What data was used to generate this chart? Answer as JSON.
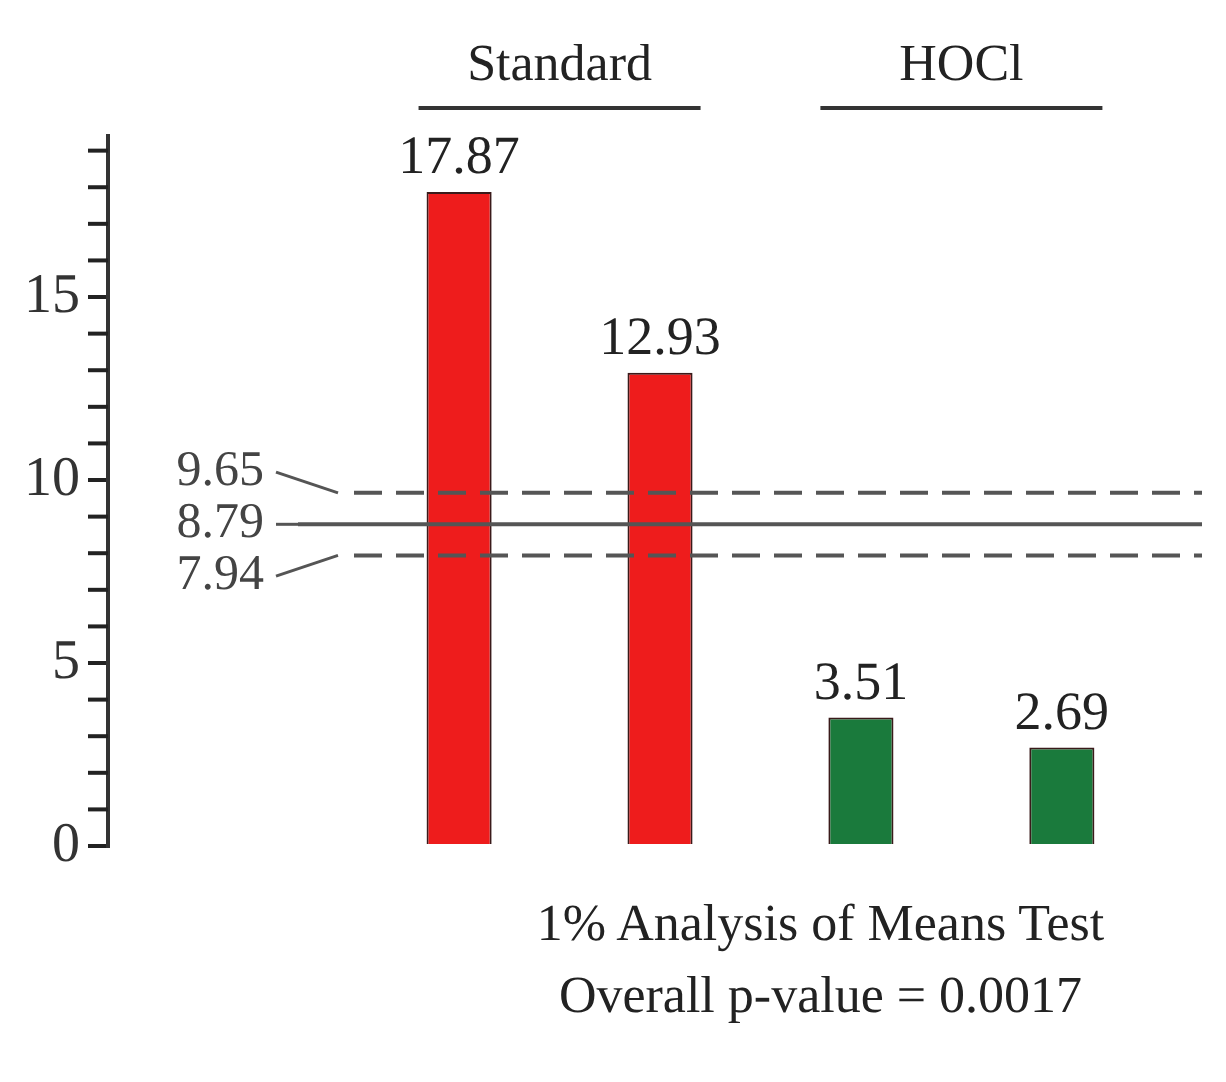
{
  "chart_data": {
    "type": "bar",
    "categories": [
      null,
      null,
      null,
      null
    ],
    "values": [
      17.87,
      12.93,
      3.51,
      2.69
    ],
    "colors": [
      "#ee1c1c",
      "#ee1c1c",
      "#1a7a3c",
      "#1a7a3c"
    ],
    "ylim": [
      0,
      19.4
    ],
    "yticks": [
      0,
      5,
      10,
      15
    ],
    "data_labels": true,
    "grid": false,
    "legend": false,
    "ref_lines": [
      {
        "axis": "y",
        "value": 9.65,
        "label": "9.65",
        "line_style": "dashed",
        "color": "#555555"
      },
      {
        "axis": "y",
        "value": 8.79,
        "label": "8.79",
        "line_style": "solid",
        "color": "#555555"
      },
      {
        "axis": "y",
        "value": 7.94,
        "label": "7.94",
        "line_style": "dashed",
        "color": "#555555"
      }
    ],
    "annotations": [
      "Standard",
      "HOCl",
      "1% Analysis of Means Test",
      "Overall p-value = 0.0017"
    ]
  }
}
